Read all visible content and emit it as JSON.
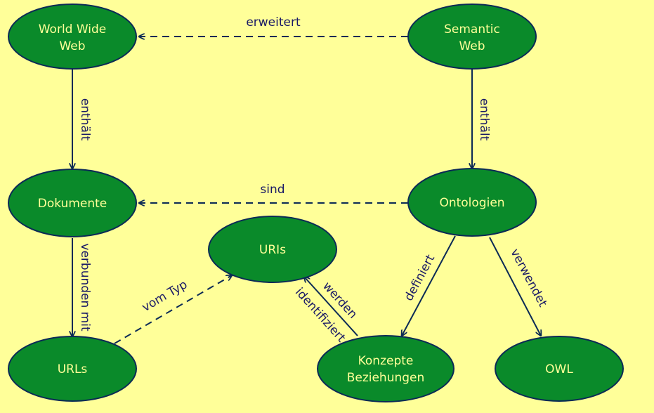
{
  "nodes": {
    "www": [
      "World Wide",
      "Web"
    ],
    "semweb": [
      "Semantic",
      "Web"
    ],
    "dokumente": [
      "Dokumente"
    ],
    "ontologien": [
      "Ontologien"
    ],
    "uris": [
      "URIs"
    ],
    "urls": [
      "URLs"
    ],
    "konzepte": [
      "Konzepte",
      "Beziehungen"
    ],
    "owl": [
      "OWL"
    ]
  },
  "edges": {
    "erweitert": "erweitert",
    "enthaelt_left": "enthält",
    "enthaelt_right": "enthält",
    "sind": "sind",
    "verbunden_mit": "verbunden mit",
    "vom_typ": "vom Typ",
    "werden": "werden",
    "identifiziert": "identifiziert",
    "definiert": "definiert",
    "verwendet": "verwendet"
  },
  "colors": {
    "background": "#ffff99",
    "node_fill": "#0a8a2a",
    "node_stroke": "#0b2a55",
    "node_text": "#ffff99",
    "edge": "#0b2a55",
    "edge_text": "#1a1a66"
  }
}
